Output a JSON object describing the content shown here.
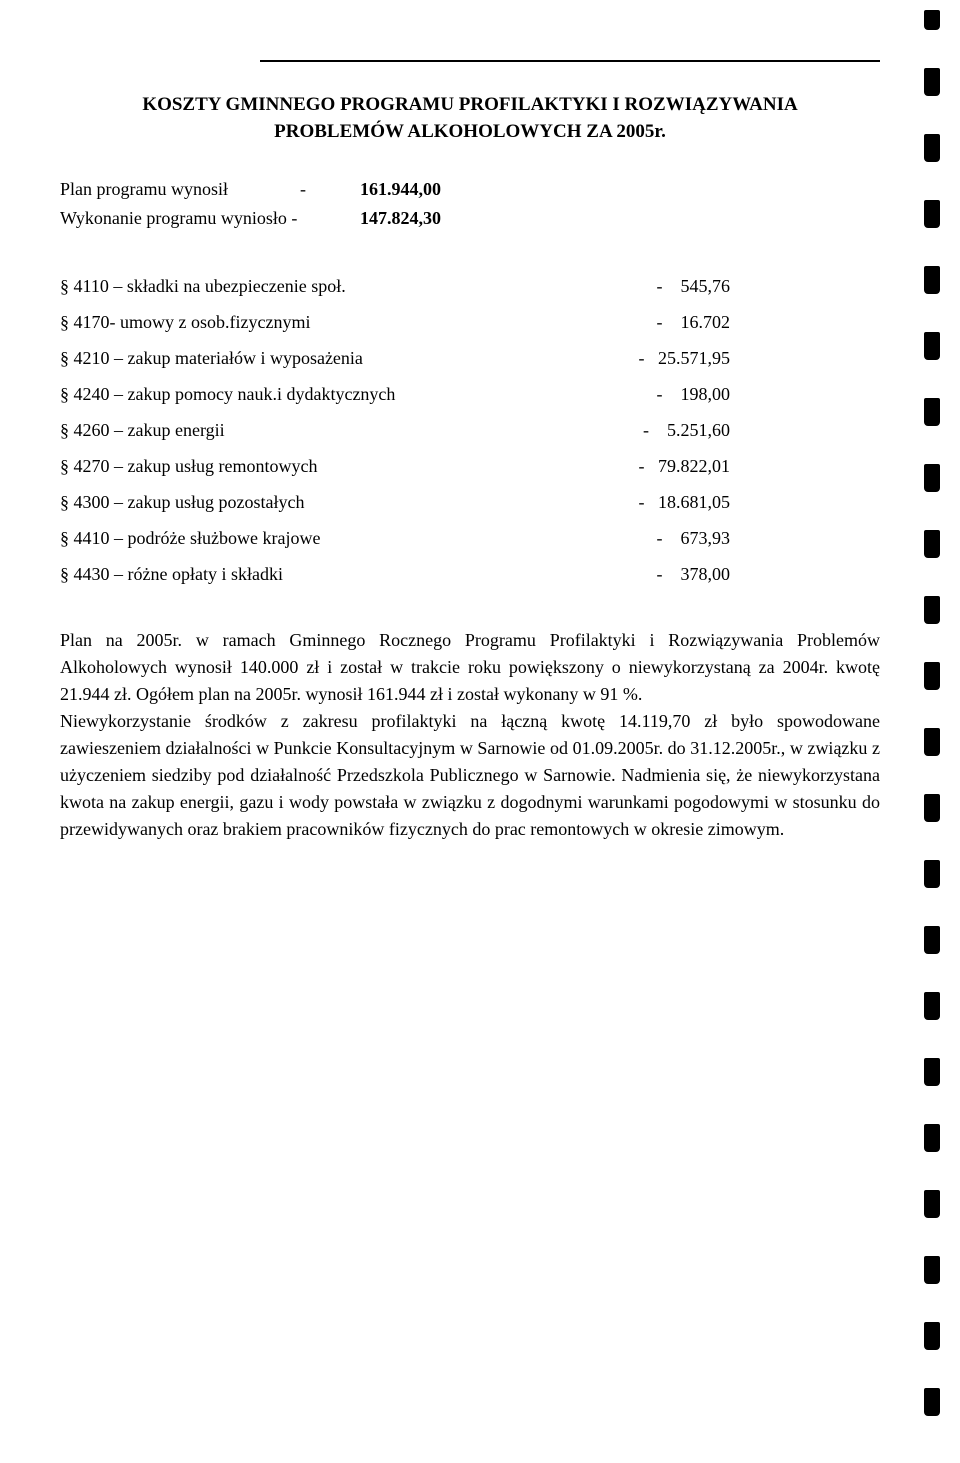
{
  "title_line1": "KOSZTY GMINNEGO PROGRAMU PROFILAKTYKI I ROZWIĄZYWANIA",
  "title_line2": "PROBLEMÓW ALKOHOLOWYCH ZA 2005r.",
  "plan": {
    "label1": "Plan programu wynosił",
    "dash": "-",
    "value1": "161.944,00",
    "label2": "Wykonanie programu wyniosło -",
    "value2": "147.824,30"
  },
  "items": [
    {
      "label": "§ 4110 – składki na ubezpieczenie społ.",
      "dash": "-",
      "value": "545,76"
    },
    {
      "label": "§ 4170- umowy z osob.fizycznymi",
      "dash": "-",
      "value": "16.702"
    },
    {
      "label": "§ 4210 – zakup materiałów i wyposażenia",
      "dash": "-",
      "value": "25.571,95"
    },
    {
      "label": "§ 4240 – zakup pomocy nauk.i dydaktycznych",
      "dash": "-",
      "value": "198,00"
    },
    {
      "label": "§ 4260 – zakup energii",
      "dash": "-",
      "value": "5.251,60"
    },
    {
      "label": "§ 4270 – zakup usług remontowych",
      "dash": "-",
      "value": "79.822,01"
    },
    {
      "label": "§ 4300 – zakup usług pozostałych",
      "dash": "-",
      "value": "18.681,05"
    },
    {
      "label": "§ 4410 – podróże służbowe krajowe",
      "dash": "-",
      "value": "673,93"
    },
    {
      "label": "§ 4430 – różne opłaty i składki",
      "dash": "-",
      "value": "378,00"
    }
  ],
  "body": "Plan na 2005r. w ramach Gminnego Rocznego Programu Profilaktyki i Rozwiązywania Problemów Alkoholowych wynosił 140.000 zł i został w trakcie roku powiększony o niewykorzystaną za 2004r. kwotę 21.944 zł. Ogółem plan na 2005r. wynosił 161.944 zł i został wykonany w 91 %.\nNiewykorzystanie środków z zakresu profilaktyki na łączną kwotę 14.119,70 zł było spowodowane zawieszeniem działalności w Punkcie Konsultacyjnym w Sarnowie od 01.09.2005r. do 31.12.2005r., w związku z użyczeniem siedziby pod działalność Przedszkola Publicznego w Sarnowie. Nadmienia się, że niewykorzystana kwota na zakup energii, gazu i wody powstała w związku z dogodnymi warunkami pogodowymi w stosunku do przewidywanych oraz brakiem pracowników fizycznych do prac remontowych w okresie zimowym.",
  "spacing": {
    "small_indent": "    ",
    "big_indent": "   "
  }
}
